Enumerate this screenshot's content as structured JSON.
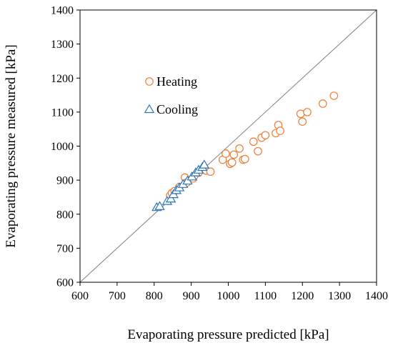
{
  "chart_data": {
    "type": "scatter",
    "title": "",
    "xlabel": "Evaporating pressure predicted  [kPa]",
    "ylabel": "Evaporating pressure measured [kPa]",
    "xlim": [
      600,
      1400
    ],
    "ylim": [
      600,
      1400
    ],
    "xticks": [
      600,
      700,
      800,
      900,
      1000,
      1100,
      1200,
      1300,
      1400
    ],
    "yticks": [
      600,
      700,
      800,
      900,
      1000,
      1100,
      1200,
      1300,
      1400
    ],
    "grid": false,
    "legend_position": "upper-left",
    "reference_line": {
      "label": "",
      "from": [
        600,
        600
      ],
      "to": [
        1400,
        1400
      ],
      "color": "#7f7f7f"
    },
    "series": [
      {
        "name": "Heating",
        "marker": "circle",
        "color": "#ed7d31",
        "points": [
          [
            843,
            855
          ],
          [
            848,
            862
          ],
          [
            855,
            868
          ],
          [
            868,
            880
          ],
          [
            883,
            908
          ],
          [
            888,
            893
          ],
          [
            905,
            905
          ],
          [
            908,
            912
          ],
          [
            920,
            922
          ],
          [
            940,
            928
          ],
          [
            952,
            925
          ],
          [
            985,
            960
          ],
          [
            993,
            978
          ],
          [
            1005,
            948
          ],
          [
            1010,
            952
          ],
          [
            1015,
            975
          ],
          [
            1030,
            993
          ],
          [
            1040,
            960
          ],
          [
            1045,
            962
          ],
          [
            1068,
            1013
          ],
          [
            1080,
            985
          ],
          [
            1090,
            1025
          ],
          [
            1100,
            1032
          ],
          [
            1128,
            1038
          ],
          [
            1135,
            1062
          ],
          [
            1140,
            1045
          ],
          [
            1195,
            1095
          ],
          [
            1200,
            1072
          ],
          [
            1213,
            1100
          ],
          [
            1255,
            1125
          ],
          [
            1285,
            1148
          ]
        ]
      },
      {
        "name": "Cooling",
        "marker": "triangle",
        "color": "#2e75b6",
        "points": [
          [
            807,
            820
          ],
          [
            815,
            823
          ],
          [
            835,
            838
          ],
          [
            845,
            845
          ],
          [
            852,
            858
          ],
          [
            860,
            870
          ],
          [
            868,
            878
          ],
          [
            878,
            888
          ],
          [
            890,
            898
          ],
          [
            902,
            910
          ],
          [
            912,
            922
          ],
          [
            920,
            930
          ],
          [
            930,
            938
          ],
          [
            935,
            945
          ]
        ]
      }
    ]
  }
}
